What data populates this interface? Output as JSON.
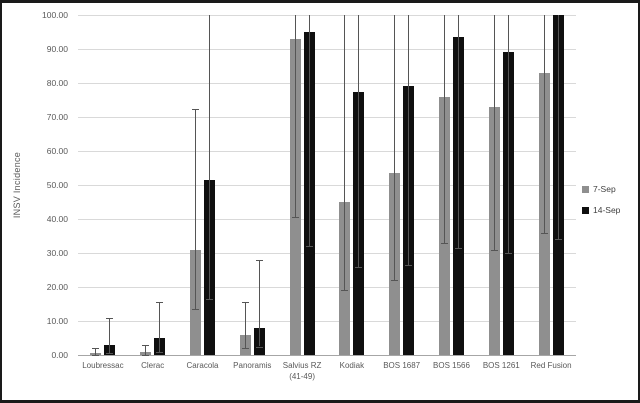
{
  "figure": {
    "background": "#ffffff",
    "border_color": "#1a1a1a",
    "gridline_color": "#d9d9d9",
    "text_color": "#595959"
  },
  "chart_data": {
    "type": "bar",
    "title": "",
    "xlabel": "",
    "ylabel": "INSV Incidence",
    "ylim": [
      0,
      100
    ],
    "y_tick_step": 10,
    "y_tick_labels": [
      "0.00",
      "10.00",
      "20.00",
      "30.00",
      "40.00",
      "50.00",
      "60.00",
      "70.00",
      "80.00",
      "90.00",
      "100.00"
    ],
    "grid": true,
    "legend_position": "right",
    "error_bars": true,
    "error_bar_color": "#555555",
    "categories": [
      "Loubressac",
      "Clerac",
      "Caracola",
      "Panoramis",
      "Salvius RZ (41-49)",
      "Kodiak",
      "BOS 1687",
      "BOS 1566",
      "BOS 1261",
      "Red Fusion"
    ],
    "series": [
      {
        "name": "7-Sep",
        "color": "#8f8f8f",
        "values": [
          0.7,
          0.9,
          31,
          6,
          93,
          45,
          53.5,
          76,
          73,
          83
        ],
        "error_low": [
          0,
          0,
          13.5,
          2,
          40.5,
          19,
          22,
          33,
          31,
          36
        ],
        "error_high": [
          2,
          3,
          72.5,
          15.5,
          100,
          100,
          100,
          100,
          100,
          100
        ]
      },
      {
        "name": "14-Sep",
        "color": "#0f0f0f",
        "values": [
          3,
          5,
          51.5,
          8,
          95,
          77.5,
          79,
          93.5,
          89,
          100
        ],
        "error_low": [
          0.5,
          1,
          16.5,
          2.5,
          32,
          26,
          26.5,
          31.5,
          30,
          34
        ],
        "error_high": [
          11,
          15.5,
          100,
          28,
          100,
          100,
          100,
          100,
          100,
          100
        ]
      }
    ]
  }
}
